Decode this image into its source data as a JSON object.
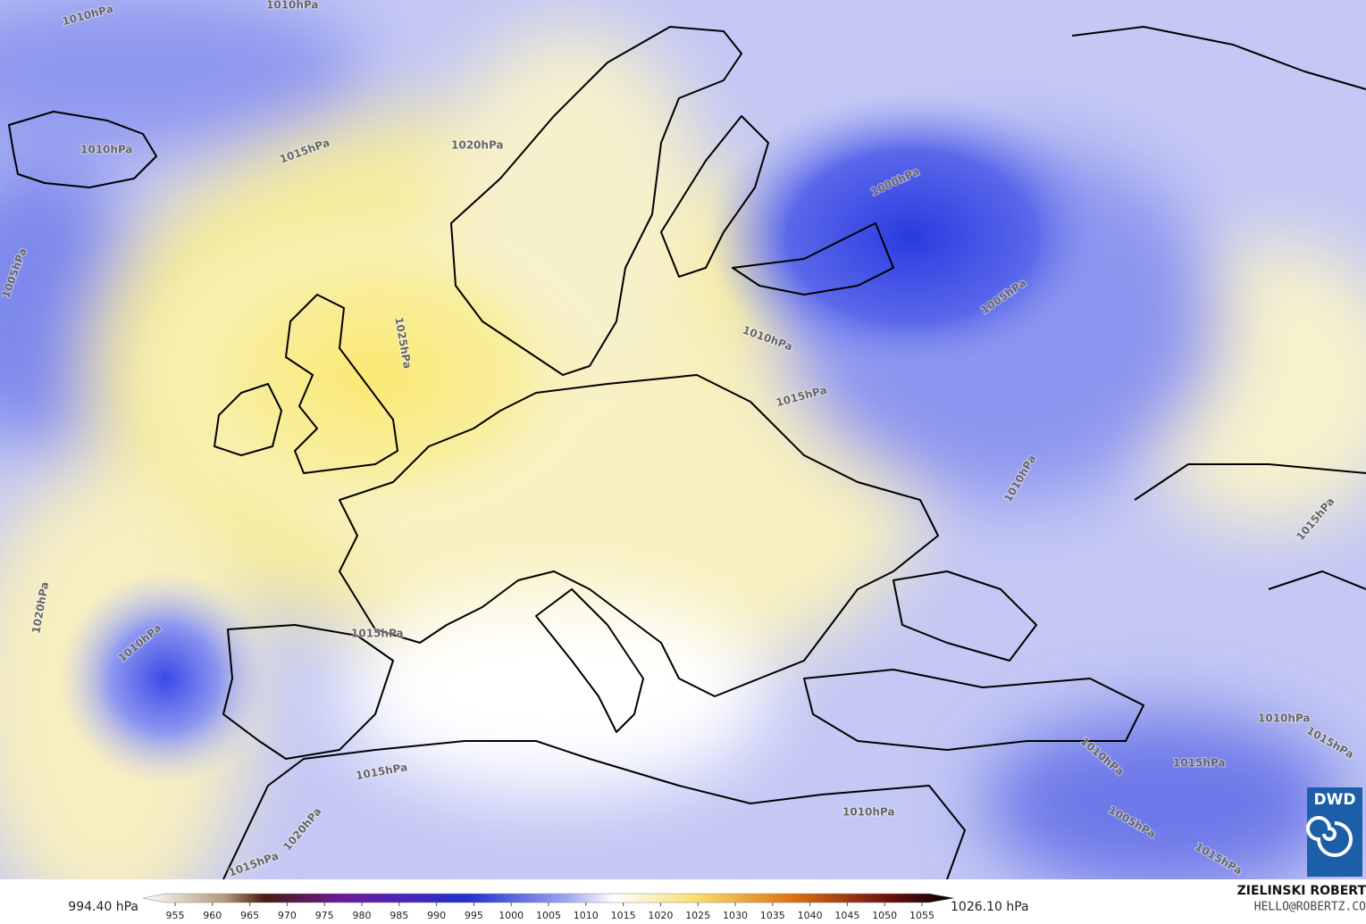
{
  "map": {
    "isobar_labels": [
      "1010hPa",
      "1010hPa",
      "1010hPa",
      "1015hPa",
      "1020hPa",
      "1025hPa",
      "1005hPa",
      "1010hPa",
      "1020hPa",
      "1015hPa",
      "1015hPa",
      "1020hPa",
      "1015hPa",
      "1000hPa",
      "1005hPa",
      "1010hPa",
      "1015hPa",
      "1010hPa",
      "1015hPa",
      "1010hPa",
      "1015hPa",
      "1010hPa",
      "1015hPa",
      "1010hPa",
      "1005hPa",
      "1015hPa"
    ],
    "logo": "DWD"
  },
  "colorbar": {
    "min_label": "994.40 hPa",
    "max_label": "1026.10 hPa",
    "ticks": [
      955,
      960,
      965,
      970,
      975,
      980,
      985,
      990,
      995,
      1000,
      1005,
      1010,
      1015,
      1020,
      1025,
      1030,
      1035,
      1040,
      1045,
      1050,
      1055
    ]
  },
  "credit": {
    "author": "ZIELINSKI ROBERT",
    "email": "HELLO@ROBERTZ.CO"
  }
}
